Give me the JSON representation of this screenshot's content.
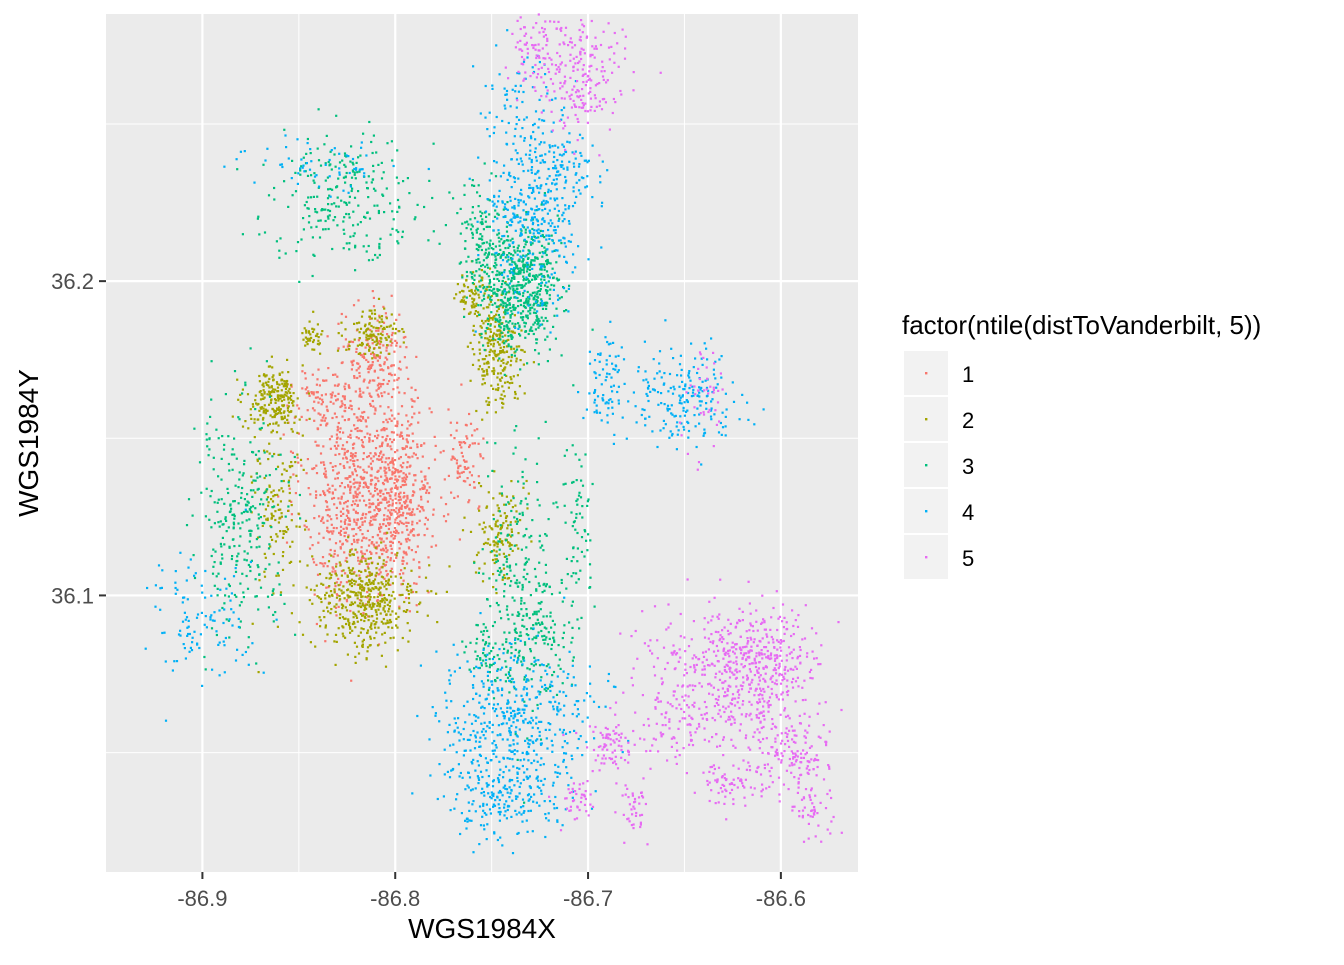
{
  "chart_data": {
    "type": "scatter",
    "title": "",
    "xlabel": "WGS1984X",
    "ylabel": "WGS1984Y",
    "xlim": [
      -86.95,
      -86.56
    ],
    "ylim": [
      36.012,
      36.285
    ],
    "x_ticks": [
      -86.9,
      -86.8,
      -86.7,
      -86.6
    ],
    "x_tick_labels": [
      "-86.9",
      "-86.8",
      "-86.7",
      "-86.6"
    ],
    "y_ticks": [
      36.1,
      36.2
    ],
    "y_tick_labels": [
      "36.1",
      "36.2"
    ],
    "grid": true,
    "legend": {
      "title": "factor(ntile(distToVanderbilt, 5))",
      "position": "right",
      "entries": [
        "1",
        "2",
        "3",
        "4",
        "5"
      ]
    },
    "colors": [
      "#F8766D",
      "#A3A500",
      "#00BF7D",
      "#00B0F6",
      "#E76BF3"
    ],
    "series": [
      {
        "name": "1",
        "clusters": [
          {
            "cx": -86.82,
            "cy": 36.132,
            "sx": 0.014,
            "sy": 0.018,
            "n": 700
          },
          {
            "cx": -86.797,
            "cy": 36.133,
            "sx": 0.008,
            "sy": 0.014,
            "n": 400
          },
          {
            "cx": -86.81,
            "cy": 36.176,
            "sx": 0.008,
            "sy": 0.008,
            "n": 170
          },
          {
            "cx": -86.764,
            "cy": 36.142,
            "sx": 0.005,
            "sy": 0.008,
            "n": 80
          },
          {
            "cx": -86.836,
            "cy": 36.162,
            "sx": 0.01,
            "sy": 0.005,
            "n": 90
          }
        ]
      },
      {
        "name": "2",
        "clusters": [
          {
            "cx": -86.816,
            "cy": 36.098,
            "sx": 0.014,
            "sy": 0.008,
            "n": 450
          },
          {
            "cx": -86.863,
            "cy": 36.162,
            "sx": 0.007,
            "sy": 0.005,
            "n": 220
          },
          {
            "cx": -86.812,
            "cy": 36.183,
            "sx": 0.007,
            "sy": 0.004,
            "n": 120
          },
          {
            "cx": -86.747,
            "cy": 36.178,
            "sx": 0.006,
            "sy": 0.009,
            "n": 250
          },
          {
            "cx": -86.745,
            "cy": 36.12,
            "sx": 0.006,
            "sy": 0.008,
            "n": 130
          },
          {
            "cx": -86.862,
            "cy": 36.13,
            "sx": 0.006,
            "sy": 0.013,
            "n": 120
          },
          {
            "cx": -86.843,
            "cy": 36.182,
            "sx": 0.003,
            "sy": 0.003,
            "n": 40
          },
          {
            "cx": -86.76,
            "cy": 36.196,
            "sx": 0.004,
            "sy": 0.004,
            "n": 70
          }
        ]
      },
      {
        "name": "3",
        "clusters": [
          {
            "cx": -86.735,
            "cy": 36.198,
            "sx": 0.01,
            "sy": 0.01,
            "n": 600
          },
          {
            "cx": -86.755,
            "cy": 36.214,
            "sx": 0.006,
            "sy": 0.009,
            "n": 130
          },
          {
            "cx": -86.825,
            "cy": 36.227,
            "sx": 0.02,
            "sy": 0.01,
            "n": 260
          },
          {
            "cx": -86.88,
            "cy": 36.125,
            "sx": 0.012,
            "sy": 0.018,
            "n": 280
          },
          {
            "cx": -86.737,
            "cy": 36.102,
            "sx": 0.01,
            "sy": 0.02,
            "n": 240
          },
          {
            "cx": -86.705,
            "cy": 36.123,
            "sx": 0.004,
            "sy": 0.014,
            "n": 70
          },
          {
            "cx": -86.722,
            "cy": 36.09,
            "sx": 0.008,
            "sy": 0.01,
            "n": 90
          },
          {
            "cx": -86.748,
            "cy": 36.082,
            "sx": 0.008,
            "sy": 0.005,
            "n": 60
          }
        ]
      },
      {
        "name": "4",
        "clusters": [
          {
            "cx": -86.727,
            "cy": 36.222,
            "sx": 0.012,
            "sy": 0.016,
            "n": 420
          },
          {
            "cx": -86.738,
            "cy": 36.059,
            "sx": 0.02,
            "sy": 0.013,
            "n": 500
          },
          {
            "cx": -86.748,
            "cy": 36.034,
            "sx": 0.014,
            "sy": 0.006,
            "n": 160
          },
          {
            "cx": -86.9,
            "cy": 36.092,
            "sx": 0.015,
            "sy": 0.01,
            "n": 110
          },
          {
            "cx": -86.653,
            "cy": 36.162,
            "sx": 0.015,
            "sy": 0.008,
            "n": 210
          },
          {
            "cx": -86.69,
            "cy": 36.168,
            "sx": 0.006,
            "sy": 0.008,
            "n": 70
          },
          {
            "cx": -86.707,
            "cy": 36.236,
            "sx": 0.008,
            "sy": 0.004,
            "n": 40
          },
          {
            "cx": -86.735,
            "cy": 36.259,
            "sx": 0.012,
            "sy": 0.007,
            "n": 55
          },
          {
            "cx": -86.838,
            "cy": 36.237,
            "sx": 0.02,
            "sy": 0.004,
            "n": 60
          }
        ]
      },
      {
        "name": "5",
        "clusters": [
          {
            "cx": -86.706,
            "cy": 36.266,
            "sx": 0.012,
            "sy": 0.01,
            "n": 220
          },
          {
            "cx": -86.728,
            "cy": 36.274,
            "sx": 0.006,
            "sy": 0.006,
            "n": 70
          },
          {
            "cx": -86.612,
            "cy": 36.078,
            "sx": 0.016,
            "sy": 0.009,
            "n": 420
          },
          {
            "cx": -86.643,
            "cy": 36.07,
            "sx": 0.017,
            "sy": 0.012,
            "n": 280
          },
          {
            "cx": -86.596,
            "cy": 36.05,
            "sx": 0.011,
            "sy": 0.006,
            "n": 130
          },
          {
            "cx": -86.585,
            "cy": 36.035,
            "sx": 0.005,
            "sy": 0.006,
            "n": 60
          },
          {
            "cx": -86.625,
            "cy": 36.04,
            "sx": 0.008,
            "sy": 0.004,
            "n": 70
          },
          {
            "cx": -86.688,
            "cy": 36.052,
            "sx": 0.009,
            "sy": 0.004,
            "n": 80
          },
          {
            "cx": -86.677,
            "cy": 36.032,
            "sx": 0.004,
            "sy": 0.005,
            "n": 40
          },
          {
            "cx": -86.705,
            "cy": 36.035,
            "sx": 0.005,
            "sy": 0.003,
            "n": 40
          },
          {
            "cx": -86.64,
            "cy": 36.163,
            "sx": 0.006,
            "sy": 0.008,
            "n": 40
          }
        ]
      }
    ]
  }
}
